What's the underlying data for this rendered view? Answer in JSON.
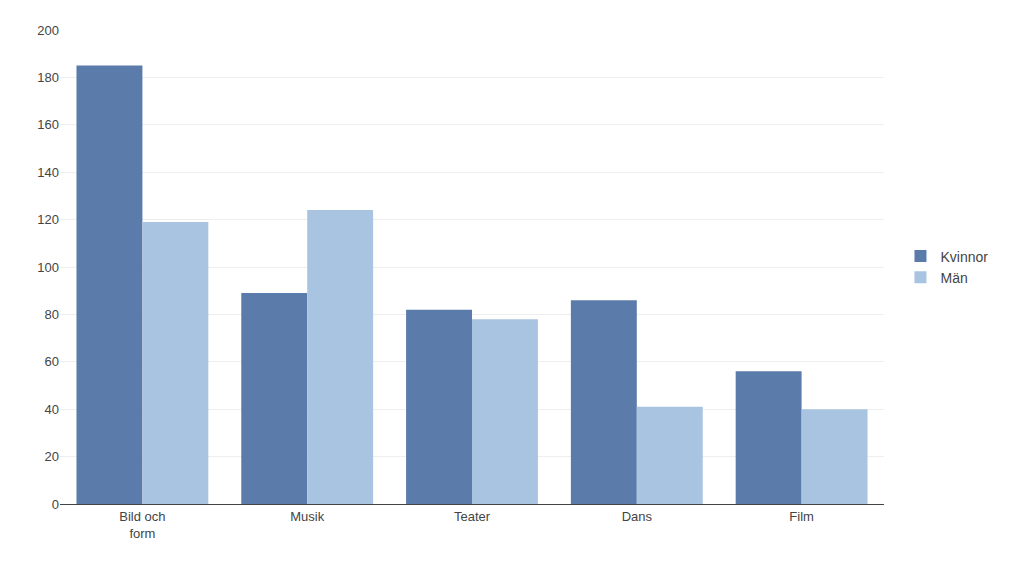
{
  "chart_data": {
    "type": "bar",
    "categories": [
      "Bild och\nform",
      "Musik",
      "Teater",
      "Dans",
      "Film"
    ],
    "series": [
      {
        "name": "Kvinnor",
        "color": "#5b7baa",
        "values": [
          185,
          89,
          82,
          86,
          56
        ]
      },
      {
        "name": "Män",
        "color": "#a8c4e0",
        "values": [
          119,
          124,
          78,
          41,
          40
        ]
      }
    ],
    "ylim": [
      0,
      200
    ],
    "yticks": [
      0,
      20,
      40,
      60,
      80,
      100,
      120,
      140,
      160,
      180,
      200
    ],
    "grid": true,
    "legend": "right"
  }
}
